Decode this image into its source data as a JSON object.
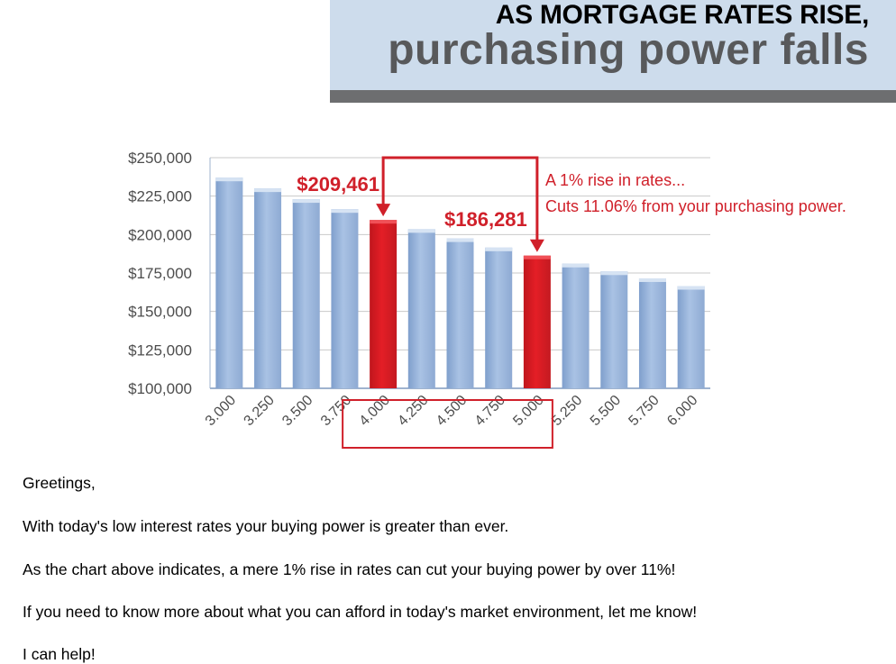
{
  "banner": {
    "line1": "AS MORTGAGE RATES RISE,",
    "line2": "purchasing power falls"
  },
  "colors": {
    "banner_bg": "#cddcec",
    "banner_bar": "#6d6e70",
    "bar_blue": "#a9c2e4",
    "bar_highlight": "#e41e26",
    "annotation_red": "#d0202a"
  },
  "chart_data": {
    "type": "bar",
    "categories": [
      "3.000",
      "3.250",
      "3.500",
      "3.750",
      "4.000",
      "4.250",
      "4.500",
      "4.750",
      "5.000",
      "5.250",
      "5.500",
      "5.750",
      "6.000"
    ],
    "values": [
      237000,
      230000,
      223000,
      216500,
      209461,
      203500,
      197500,
      191500,
      186281,
      181000,
      176000,
      171500,
      166500
    ],
    "highlighted": [
      "4.000",
      "5.000"
    ],
    "ylim": [
      100000,
      250000
    ],
    "yticks": [
      "$250,000",
      "$225,000",
      "$200,000",
      "$175,000",
      "$150,000",
      "$125,000",
      "$100,000"
    ],
    "grid": true,
    "labels": {
      "low": "$209,461",
      "high": "$186,281"
    },
    "annotation": {
      "line1": "A 1% rise in rates...",
      "line2": "Cuts 11.06% from your purchasing power."
    }
  },
  "body": {
    "greeting": "Greetings,",
    "p1": "With today's low interest rates your buying power is greater than ever.",
    "p2": "As the chart above indicates, a mere 1% rise in rates can cut your buying power by over 11%!",
    "p3": "If you need to know more about what you can afford in today's market environment, let me know!",
    "p4": "I can help!"
  }
}
